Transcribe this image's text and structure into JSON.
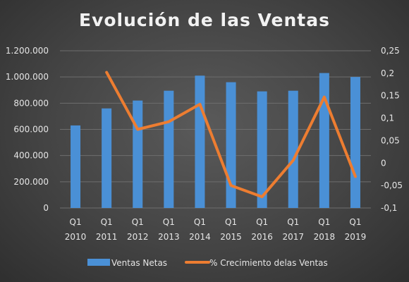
{
  "chart_data": {
    "type": "bar",
    "title": "Evolución de las Ventas",
    "categories": [
      [
        "Q1",
        "2010"
      ],
      [
        "Q1",
        "2011"
      ],
      [
        "Q1",
        "2012"
      ],
      [
        "Q1",
        "2013"
      ],
      [
        "Q1",
        "2014"
      ],
      [
        "Q1",
        "2015"
      ],
      [
        "Q1",
        "2016"
      ],
      [
        "Q1",
        "2017"
      ],
      [
        "Q1",
        "2018"
      ],
      [
        "Q1",
        "2019"
      ]
    ],
    "series": [
      {
        "name": "Ventas Netas",
        "type": "bar",
        "axis": "left",
        "color": "#4a90d6",
        "values": [
          630000,
          760000,
          820000,
          895000,
          1010000,
          960000,
          890000,
          895000,
          1030000,
          1000000
        ]
      },
      {
        "name": "% Crecimiento delas Ventas",
        "type": "line",
        "axis": "right",
        "color": "#ed7d31",
        "values": [
          null,
          0.202,
          0.075,
          0.092,
          0.131,
          -0.05,
          -0.075,
          0.006,
          0.147,
          -0.03
        ]
      }
    ],
    "yleft": {
      "ylim": [
        0,
        1200000
      ],
      "ticks": [
        0,
        200000,
        400000,
        600000,
        800000,
        1000000,
        1200000
      ],
      "tick_labels": [
        "0",
        "200.000",
        "400.000",
        "600.000",
        "800.000",
        "1.000.000",
        "1.200.000"
      ]
    },
    "yright": {
      "ylim": [
        -0.1,
        0.25
      ],
      "ticks": [
        -0.1,
        -0.05,
        0,
        0.05,
        0.1,
        0.15,
        0.2,
        0.25
      ],
      "tick_labels": [
        "-0,1",
        "-0,05",
        "0",
        "0,05",
        "0,1",
        "0,15",
        "0,2",
        "0,25"
      ]
    },
    "grid": true,
    "legend": "bottom"
  }
}
